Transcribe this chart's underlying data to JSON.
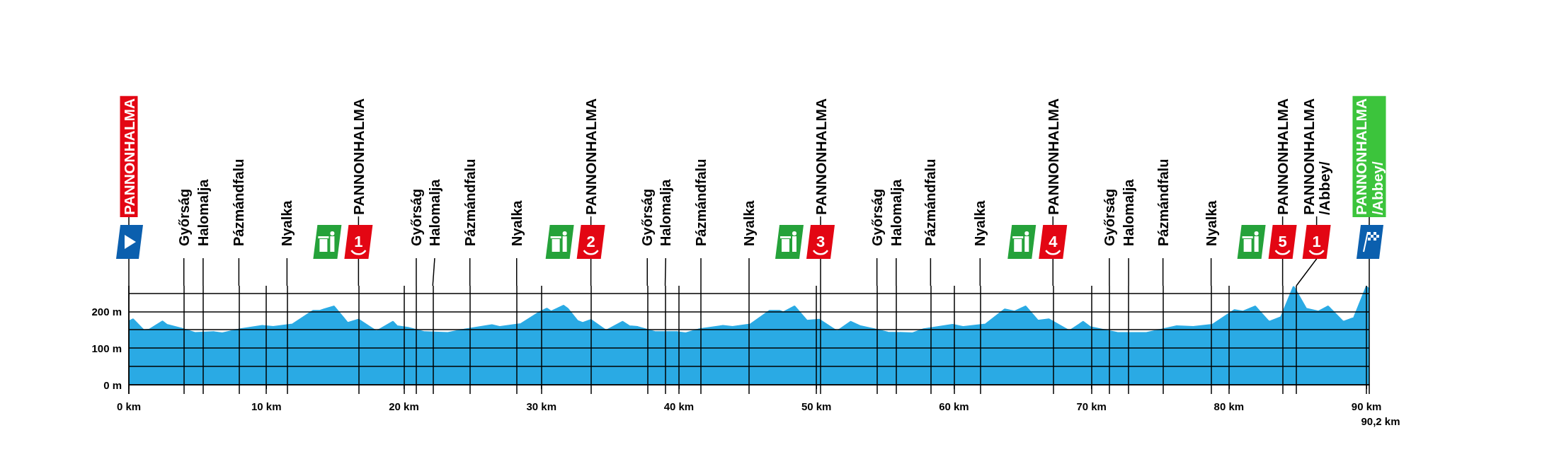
{
  "chart_data": {
    "type": "area",
    "color": "#2aaae4",
    "x": [
      0,
      0.3,
      1.1,
      1.5,
      2.45,
      2.75,
      3.8,
      4.8,
      6.2,
      6.8,
      8.1,
      9.7,
      10.5,
      11.9,
      13.4,
      13.9,
      14.2,
      14.9,
      15.6,
      15.9,
      16.7,
      18.0,
      19.2,
      19.5,
      20.3,
      21.5,
      23.2,
      24.4,
      26.4,
      27.0,
      28.5,
      29.9,
      30.4,
      30.7,
      31.6,
      31.9,
      32.6,
      33.0,
      33.6,
      34.7,
      35.9,
      36.4,
      37.0,
      38.3,
      39.9,
      40.5,
      41.5,
      43.2,
      43.9,
      45.2,
      46.6,
      47.3,
      47.6,
      48.4,
      49.3,
      50.2,
      51.5,
      52.5,
      53.2,
      54.2,
      55.2,
      57.0,
      57.8,
      59.9,
      60.7,
      62.3,
      63.7,
      64.4,
      65.2,
      66.1,
      66.9,
      68.4,
      69.4,
      69.9,
      71.9,
      74.0,
      76.2,
      77.4,
      78.8,
      80.4,
      81.0,
      81.9,
      82.9,
      83.8,
      84.7,
      85.6,
      86.5,
      87.2,
      88.3,
      89.1,
      90.0,
      90.2
    ],
    "values": [
      172,
      178,
      147,
      150,
      172,
      163,
      153,
      141,
      143,
      140,
      151,
      160,
      157,
      164,
      201,
      201,
      205,
      213,
      182,
      168,
      177,
      145,
      171,
      159,
      155,
      143,
      141,
      150,
      162,
      157,
      165,
      198,
      207,
      199,
      215,
      207,
      174,
      168,
      176,
      147,
      171,
      159,
      157,
      143,
      143,
      140,
      151,
      160,
      157,
      164,
      201,
      201,
      197,
      213,
      174,
      177,
      145,
      171,
      159,
      151,
      142,
      140,
      151,
      163,
      157,
      164,
      205,
      199,
      213,
      174,
      178,
      146,
      171,
      157,
      141,
      141,
      159,
      157,
      163,
      203,
      199,
      213,
      171,
      184,
      266,
      207,
      199,
      213,
      171,
      182,
      266,
      260
    ],
    "xlim": [
      0,
      90.2
    ],
    "xticks": [
      {
        "value": 0,
        "label": "0 km"
      },
      {
        "value": 10,
        "label": "10 km"
      },
      {
        "value": 20,
        "label": "20 km"
      },
      {
        "value": 30,
        "label": "30 km"
      },
      {
        "value": 40,
        "label": "40 km"
      },
      {
        "value": 50,
        "label": "50 km"
      },
      {
        "value": 60,
        "label": "60 km"
      },
      {
        "value": 70,
        "label": "70 km"
      },
      {
        "value": 80,
        "label": "80 km"
      },
      {
        "value": 90,
        "label": "90 km"
      }
    ],
    "ylim": [
      -25,
      270
    ],
    "yticks": [
      {
        "value": 0,
        "label": "0 m"
      },
      {
        "value": 50,
        "label": null
      },
      {
        "value": 100,
        "label": "100 m"
      },
      {
        "value": 150,
        "label": null
      },
      {
        "value": 200,
        "label": "200 m"
      },
      {
        "value": 250,
        "label": null
      }
    ],
    "grid": true,
    "ref_lines": [
      {
        "axis": "x",
        "value": 0,
        "label": "PANNONHALMA"
      },
      {
        "axis": "x",
        "value": 4.0,
        "label": "Győrság"
      },
      {
        "axis": "x",
        "value": 5.4,
        "label": "Halomalja"
      },
      {
        "axis": "x",
        "value": 8.0,
        "label": "Pázmándfalu"
      },
      {
        "axis": "x",
        "value": 11.5,
        "label": "Nyalka"
      },
      {
        "axis": "x",
        "value": 16.7,
        "label": "PANNONHALMA"
      },
      {
        "axis": "x",
        "value": 20.9,
        "label": "Győrság"
      },
      {
        "axis": "x",
        "value": 22.1,
        "label": "Halomalja"
      },
      {
        "axis": "x",
        "value": 24.8,
        "label": "Pázmándfalu"
      },
      {
        "axis": "x",
        "value": 28.2,
        "label": "Nyalka"
      },
      {
        "axis": "x",
        "value": 33.6,
        "label": "PANNONHALMA"
      },
      {
        "axis": "x",
        "value": 37.7,
        "label": "Győrság"
      },
      {
        "axis": "x",
        "value": 39.0,
        "label": "Halomalja"
      },
      {
        "axis": "x",
        "value": 41.6,
        "label": "Pázmándfalu"
      },
      {
        "axis": "x",
        "value": 45.1,
        "label": "Nyalka"
      },
      {
        "axis": "x",
        "value": 50.3,
        "label": "PANNONHALMA"
      },
      {
        "axis": "x",
        "value": 54.4,
        "label": "Győrság"
      },
      {
        "axis": "x",
        "value": 55.8,
        "label": "Halomalja"
      },
      {
        "axis": "x",
        "value": 58.3,
        "label": "Pázmándfalu"
      },
      {
        "axis": "x",
        "value": 61.9,
        "label": "Nyalka"
      },
      {
        "axis": "x",
        "value": 67.2,
        "label": "PANNONHALMA"
      },
      {
        "axis": "x",
        "value": 71.3,
        "label": "Győrság"
      },
      {
        "axis": "x",
        "value": 72.7,
        "label": "Halomalja"
      },
      {
        "axis": "x",
        "value": 75.2,
        "label": "Pázmándfalu"
      },
      {
        "axis": "x",
        "value": 78.7,
        "label": "Nyalka"
      },
      {
        "axis": "x",
        "value": 83.9,
        "label": "PANNONHALMA"
      },
      {
        "axis": "x",
        "value": 84.9,
        "label": "PANNONHALMA\n/Abbey/"
      },
      {
        "axis": "x",
        "value": 90.2,
        "label": "PANNONHALMA\n/Abbey/"
      }
    ],
    "annotations": [
      "1",
      "2",
      "3",
      "4",
      "5",
      {
        "text": "1",
        "x": 84.9,
        "y": 270
      },
      "90,2 km"
    ]
  }
}
